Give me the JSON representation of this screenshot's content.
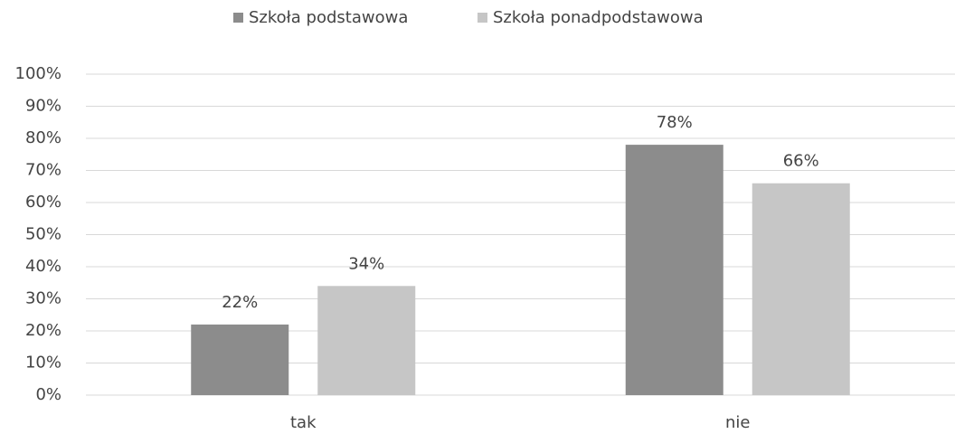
{
  "chart_data": {
    "type": "bar",
    "categories": [
      "tak",
      "nie"
    ],
    "series": [
      {
        "name": "Szkoła podstawowa",
        "color": "#8c8c8c",
        "values": [
          22,
          78
        ],
        "value_labels": [
          "22%",
          "78%"
        ]
      },
      {
        "name": "Szkoła ponadpodstawowa",
        "color": "#c6c6c6",
        "values": [
          34,
          66
        ],
        "value_labels": [
          "34%",
          "66%"
        ]
      }
    ],
    "ylim": [
      0,
      100
    ],
    "yticks": [
      {
        "value": 0,
        "label": "0%"
      },
      {
        "value": 10,
        "label": "10%"
      },
      {
        "value": 20,
        "label": "20%"
      },
      {
        "value": 30,
        "label": "30%"
      },
      {
        "value": 40,
        "label": "40%"
      },
      {
        "value": 50,
        "label": "50%"
      },
      {
        "value": 60,
        "label": "60%"
      },
      {
        "value": 70,
        "label": "70%"
      },
      {
        "value": 80,
        "label": "80%"
      },
      {
        "value": 90,
        "label": "90%"
      },
      {
        "value": 100,
        "label": "100%"
      }
    ],
    "grid": true,
    "legend": "top"
  }
}
